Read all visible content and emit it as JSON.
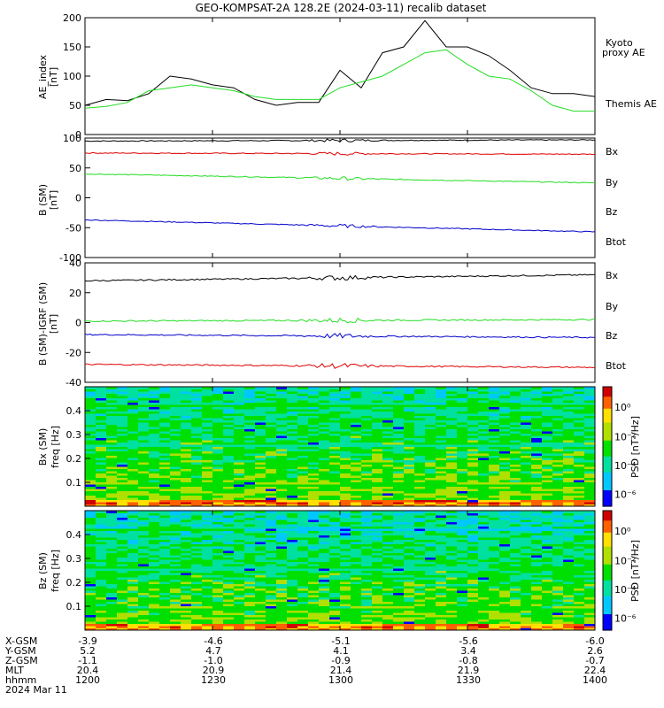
{
  "title": "GEO-KOMPSAT-2A 128.2E (2024-03-11) recalib dataset",
  "colors": {
    "black": "#000000",
    "red": "#e00000",
    "green": "#22dd22",
    "blue": "#0000cc"
  },
  "panels": {
    "ae": {
      "ylabel": "AE_index",
      "unit": "[nT]",
      "labels": {
        "kyoto": "Kyoto\nproxy AE",
        "themis": "Themis AE"
      },
      "yticks": [
        0,
        50,
        100,
        150,
        200
      ]
    },
    "b": {
      "ylabel": "B (SM)",
      "unit": "[nT]",
      "legend": [
        "Bx",
        "By",
        "Bz",
        "Btot"
      ],
      "yticks": [
        -100,
        -50,
        0,
        50,
        100
      ]
    },
    "db": {
      "ylabel": "B (SM)-IGRF (SM)",
      "unit": "[nT]",
      "legend": [
        "Bx",
        "By",
        "Bz",
        "Btot"
      ],
      "yticks": [
        -40,
        -20,
        0,
        20,
        40
      ]
    },
    "specx": {
      "ylabel": "Bx (SM)",
      "unit": "freq [Hz]",
      "yticks": [
        "0.1",
        "0.2",
        "0.3",
        "0.4"
      ],
      "cbar_label": "PSD [nT²/Hz]"
    },
    "specz": {
      "ylabel": "Bz (SM)",
      "unit": "freq [Hz]",
      "yticks": [
        "0.1",
        "0.2",
        "0.3",
        "0.4"
      ],
      "cbar_label": "PSD [nT²/Hz]"
    },
    "cbar_ticks": [
      "10⁰",
      "10⁻²",
      "10⁻⁴",
      "10⁻⁶"
    ]
  },
  "ephemeris": {
    "row_labels": [
      "X-GSM",
      "Y-GSM",
      "Z-GSM",
      "MLT",
      "hhmm",
      "2024 Mar 11"
    ],
    "columns": [
      {
        "x": "-3.9",
        "y": "5.2",
        "z": "-1.1",
        "mlt": "20.4",
        "hhmm": "1200"
      },
      {
        "x": "-4.6",
        "y": "4.7",
        "z": "-1.0",
        "mlt": "20.9",
        "hhmm": "1230"
      },
      {
        "x": "-5.1",
        "y": "4.1",
        "z": "-0.9",
        "mlt": "21.4",
        "hhmm": "1300"
      },
      {
        "x": "-5.6",
        "y": "3.4",
        "z": "-0.8",
        "mlt": "21.9",
        "hhmm": "1330"
      },
      {
        "x": "-6.0",
        "y": "2.6",
        "z": "-0.7",
        "mlt": "22.4",
        "hhmm": "1400"
      }
    ]
  },
  "chart_data": [
    {
      "type": "line",
      "x_minutes": [
        0,
        5,
        10,
        15,
        20,
        25,
        30,
        35,
        40,
        45,
        50,
        55,
        60,
        65,
        70,
        75,
        80,
        85,
        90,
        95,
        100,
        105,
        110,
        115,
        120
      ],
      "ylim": [
        0,
        200
      ],
      "series": [
        {
          "name": "Themis AE",
          "color": "#000000",
          "values": [
            50,
            60,
            58,
            70,
            100,
            95,
            85,
            80,
            60,
            50,
            55,
            55,
            110,
            80,
            140,
            150,
            195,
            150,
            150,
            135,
            110,
            80,
            70,
            70,
            65
          ]
        },
        {
          "name": "Kyoto proxy AE",
          "color": "#22dd22",
          "values": [
            45,
            48,
            55,
            75,
            80,
            85,
            80,
            75,
            65,
            60,
            60,
            60,
            80,
            90,
            100,
            120,
            140,
            145,
            120,
            100,
            95,
            75,
            50,
            40,
            40
          ]
        }
      ]
    },
    {
      "type": "line",
      "ylim": [
        -100,
        100
      ],
      "series": [
        {
          "name": "Bx",
          "color": "#000000",
          "start": 95,
          "end": 97
        },
        {
          "name": "By",
          "color": "#e00000",
          "start": 75,
          "end": 73
        },
        {
          "name": "Bz",
          "color": "#22dd22",
          "start": 40,
          "end": 25
        },
        {
          "name": "Btot",
          "color": "#0000cc",
          "start": -37,
          "end": -57
        }
      ]
    },
    {
      "type": "line",
      "ylim": [
        -40,
        40
      ],
      "series": [
        {
          "name": "Bx",
          "color": "#000000",
          "start": 28,
          "end": 32
        },
        {
          "name": "By",
          "color": "#22dd22",
          "start": 1,
          "end": 2
        },
        {
          "name": "Bz",
          "color": "#0000cc",
          "start": -8,
          "end": -10
        },
        {
          "name": "Btot",
          "color": "#e00000",
          "start": -28,
          "end": -30
        }
      ]
    },
    {
      "type": "heatmap",
      "name": "Bx (SM)",
      "ylim": [
        0,
        0.5
      ]
    },
    {
      "type": "heatmap",
      "name": "Bz (SM)",
      "ylim": [
        0,
        0.5
      ]
    }
  ]
}
